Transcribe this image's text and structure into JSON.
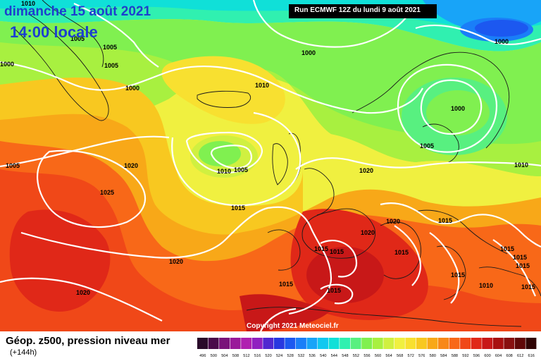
{
  "header": {
    "date": "dimanche 15 août 2021",
    "local_time": "14:00 locale",
    "run": "Run ECMWF 12Z du lundi 9 août 2021"
  },
  "footer": {
    "title": "Géop. z500, pression niveau mer",
    "lead": "(+144h)",
    "copyright": "Copyright 2021 Meteociel.fr"
  },
  "isobar_labels": [
    "1010",
    "1005",
    "1005",
    "1005",
    "1000",
    "1000",
    "1000",
    "1010",
    "1000",
    "1000",
    "1005",
    "1010",
    "1005",
    "1020",
    "1025",
    "1010",
    "1005",
    "1015",
    "1020",
    "1020",
    "1015",
    "1015",
    "1015",
    "1015",
    "1015",
    "1020",
    "1015",
    "1015",
    "1015",
    "1010",
    "1015",
    "1015",
    "1015",
    "1020",
    "1020"
  ],
  "scale": {
    "ticks": [
      "496",
      "500",
      "504",
      "508",
      "512",
      "516",
      "520",
      "524",
      "528",
      "532",
      "536",
      "540",
      "544",
      "548",
      "552",
      "556",
      "560",
      "564",
      "568",
      "572",
      "576",
      "580",
      "584",
      "588",
      "592",
      "596",
      "600",
      "604",
      "608",
      "612",
      "616"
    ],
    "colors": [
      "#2a0a2a",
      "#4a0a4a",
      "#7a137a",
      "#9a1a9a",
      "#b020b0",
      "#9020c0",
      "#5028d0",
      "#2838e0",
      "#1c58f0",
      "#1a7ef8",
      "#18a4f8",
      "#10c8f0",
      "#10e0d8",
      "#30f0b0",
      "#58f080",
      "#80f050",
      "#a8f040",
      "#d0f040",
      "#f0f040",
      "#f8e030",
      "#f8c820",
      "#f8a818",
      "#f88818",
      "#f86818",
      "#f04818",
      "#e02818",
      "#c81818",
      "#a81010",
      "#881010",
      "#600808",
      "#300404"
    ]
  }
}
